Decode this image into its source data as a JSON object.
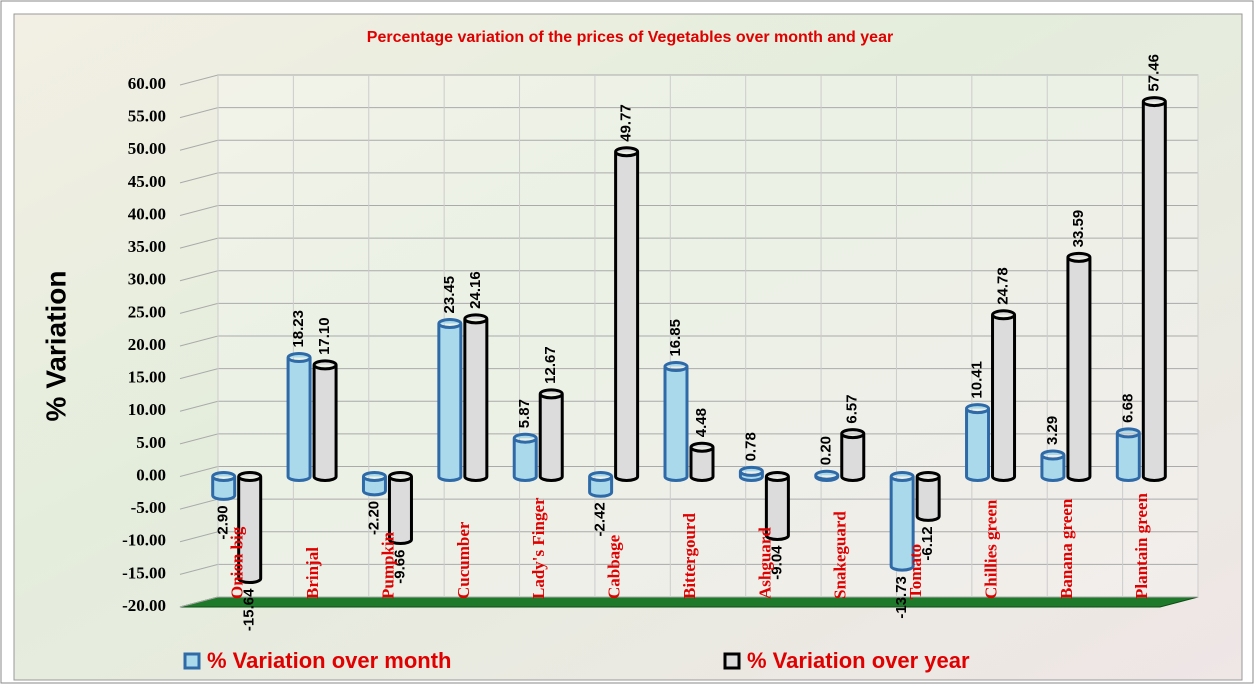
{
  "chart_data": {
    "type": "bar3d",
    "title": "Percentage variation of the prices of Vegetables over month and year",
    "y_label": "% Variation",
    "categories": [
      "Onion big",
      "Brinjal",
      "Pumpkin",
      "Cucumber",
      "Lady's Finger",
      "Cabbage",
      "Bittergourd",
      "Ashguard",
      "Snakeguard",
      "Tomato",
      "Chillies green",
      "Banana green",
      "Plantain green"
    ],
    "series": [
      {
        "name": "%  Variation over month",
        "color": "#a9d9ea",
        "stroke": "#2f6aa8",
        "values": [
          -2.9,
          18.23,
          -2.2,
          23.45,
          5.87,
          -2.42,
          16.85,
          0.78,
          0.2,
          -13.73,
          10.41,
          3.29,
          6.68
        ],
        "value_labels": [
          "-2.90",
          "18.23",
          "-2.20",
          "23.45",
          "5.87",
          "-2.42",
          "16.85",
          "0.78",
          "0.20",
          "-13.73",
          "10.41",
          "3.29",
          "6.68"
        ]
      },
      {
        "name": "%  Variation over year",
        "color": "#dcdcdc",
        "stroke": "#000000",
        "values": [
          -15.64,
          17.1,
          -9.66,
          24.16,
          12.67,
          49.77,
          4.48,
          -9.04,
          6.57,
          -6.12,
          24.78,
          33.59,
          57.46
        ],
        "value_labels": [
          "-15.64",
          "17.10",
          "-9.66",
          "24.16",
          "12.67",
          "49.77",
          "4.48",
          "-9.04",
          "6.57",
          "-6.12",
          "24.78",
          "33.59",
          "57.46"
        ]
      }
    ],
    "ylim": [
      -20,
      60
    ],
    "yticks": [
      {
        "value": -20,
        "label": "-20.00"
      },
      {
        "value": -15,
        "label": "-15.00"
      },
      {
        "value": -10,
        "label": "-10.00"
      },
      {
        "value": -5,
        "label": "-5.00"
      },
      {
        "value": 0,
        "label": "0.00"
      },
      {
        "value": 5,
        "label": "5.00"
      },
      {
        "value": 10,
        "label": "10.00"
      },
      {
        "value": 15,
        "label": "15.00"
      },
      {
        "value": 20,
        "label": "20.00"
      },
      {
        "value": 25,
        "label": "25.00"
      },
      {
        "value": 30,
        "label": "30.00"
      },
      {
        "value": 35,
        "label": "35.00"
      },
      {
        "value": 40,
        "label": "40.00"
      },
      {
        "value": 45,
        "label": "45.00"
      },
      {
        "value": 50,
        "label": "50.00"
      },
      {
        "value": 55,
        "label": "55.00"
      },
      {
        "value": 60,
        "label": "60.00"
      }
    ],
    "grid": true,
    "legend": "bottom"
  }
}
